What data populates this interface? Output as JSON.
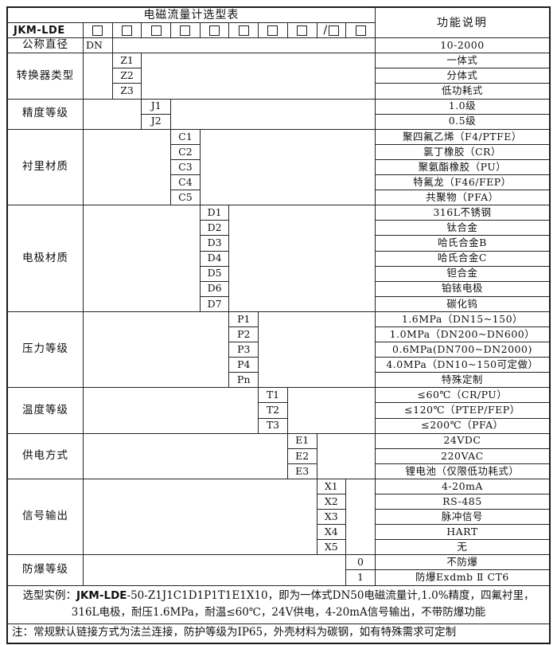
{
  "title": "电磁流量计选型表",
  "right_header": "功能说明",
  "model_prefix": "JKM-LDE",
  "checkbox_row": {
    "box_count": 10,
    "slash": "/"
  },
  "groups": [
    {
      "label": "公称直径",
      "codes": [
        "DN"
      ],
      "descriptions": [
        "10-2000"
      ]
    },
    {
      "label": "转换器类型",
      "codes": [
        "Z1",
        "Z2",
        "Z3"
      ],
      "descriptions": [
        "一体式",
        "分体式",
        "低功耗式"
      ]
    },
    {
      "label": "精度等级",
      "codes": [
        "J1",
        "J2"
      ],
      "descriptions": [
        "1.0级",
        "0.5级"
      ]
    },
    {
      "label": "衬里材质",
      "codes": [
        "C1",
        "C2",
        "C3",
        "C4",
        "C5"
      ],
      "descriptions": [
        "聚四氟乙烯（F4/PTFE）",
        "氯丁橡胶（CR）",
        "聚氨酯橡胶（PU）",
        "特氟龙（F46/FEP）",
        "共聚物（PFA）"
      ]
    },
    {
      "label": "电极材质",
      "codes": [
        "D1",
        "D2",
        "D3",
        "D4",
        "D5",
        "D6",
        "D7"
      ],
      "descriptions": [
        "316L不锈钢",
        "钛合金",
        "哈氏合金B",
        "哈氏合金C",
        "钽合金",
        "铂铱电极",
        "碳化钨"
      ]
    },
    {
      "label": "压力等级",
      "codes": [
        "P1",
        "P2",
        "P3",
        "P4",
        "Pn"
      ],
      "descriptions": [
        "1.6MPa（DN15~150）",
        "1.0MPa（DN200~DN600）",
        "0.6MPa(DN700~DN2000)",
        "4.0MPa（DN10~150可定做）",
        "特殊定制"
      ]
    },
    {
      "label": "温度等级",
      "codes": [
        "T1",
        "T2",
        "T3"
      ],
      "descriptions": [
        "≤60℃（CR/PU）",
        "≤120℃（PTEP/FEP）",
        "≤200℃（PFA）"
      ]
    },
    {
      "label": "供电方式",
      "codes": [
        "E1",
        "E2",
        "E3"
      ],
      "descriptions": [
        "24VDC",
        "220VAC",
        "锂电池（仅限低功耗式）"
      ]
    },
    {
      "label": "信号输出",
      "codes": [
        "X1",
        "X2",
        "X3",
        "X4",
        "X5"
      ],
      "descriptions": [
        "4-20mA",
        "RS-485",
        "脉冲信号",
        "HART",
        "无"
      ]
    },
    {
      "label": "防爆等级",
      "codes": [
        "0",
        "1"
      ],
      "descriptions": [
        "不防爆",
        "防爆Exdmb Ⅱ CT6"
      ]
    }
  ],
  "example": {
    "prefix": "选型实例：",
    "model": "JKM-LDE",
    "rest": "-50-Z1J1C1D1P1T1E1X10，即为一体式DN50电磁流量计,1.0%精度，四氟衬里，",
    "line2": "316L电极，耐压1.6MPa，耐温≤60℃，24V供电，4-20mA信号输出，不带防爆功能"
  },
  "note": "注：常规默认链接方式为法兰连接，防护等级为IP65，外壳材料为碳钢，如有特殊需求可定制"
}
